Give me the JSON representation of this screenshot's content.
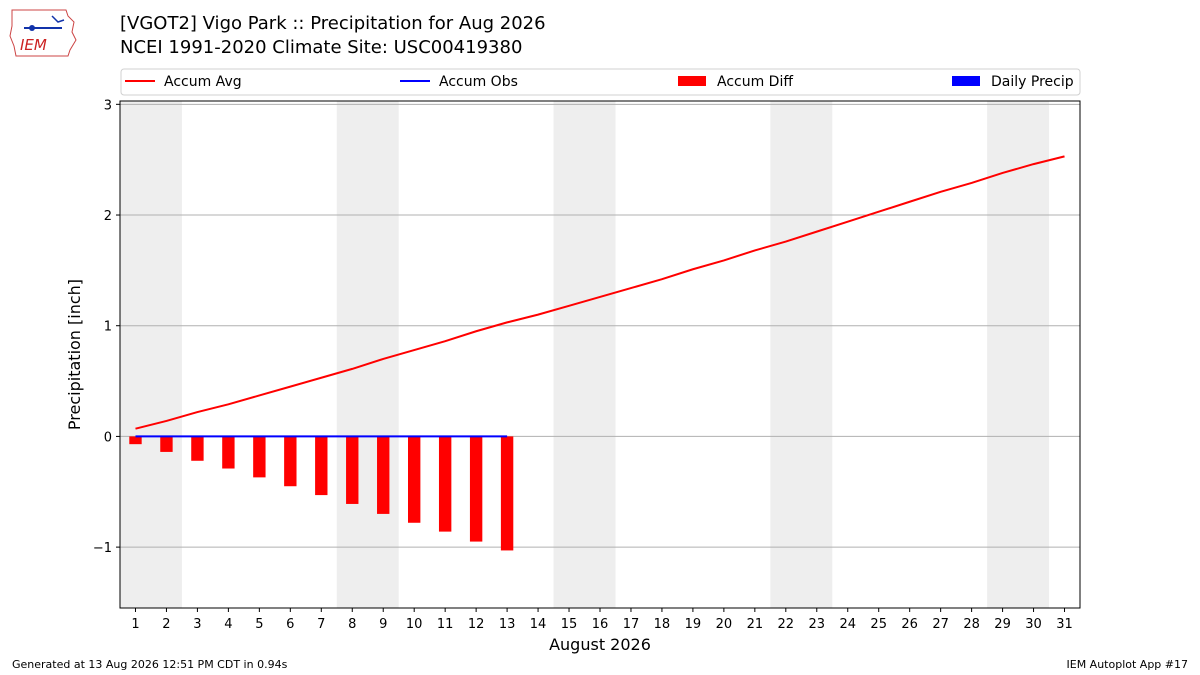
{
  "header": {
    "title_line1": "[VGOT2] Vigo Park :: Precipitation for Aug 2026",
    "title_line2": "NCEI 1991-2020 Climate Site: USC00419380",
    "logo_text": "IEM"
  },
  "footer": {
    "generated": "Generated at 13 Aug 2026 12:51 PM CDT in 0.94s",
    "app": "IEM Autoplot App #17"
  },
  "colors": {
    "accum_avg": "#ff0000",
    "accum_obs": "#0000ff",
    "accum_diff": "#ff0000",
    "daily_precip": "#0000ff",
    "weekend_band": "#eeeeee",
    "grid": "#b0b0b0"
  },
  "chart_data": {
    "type": "line",
    "xlabel": "August 2026",
    "ylabel": "Precipitation [inch]",
    "xlim": [
      0.5,
      31.5
    ],
    "ylim": [
      -1.55,
      3.03
    ],
    "grid": "horizontal",
    "legend_placement": "top",
    "x_ticks": [
      1,
      2,
      3,
      4,
      5,
      6,
      7,
      8,
      9,
      10,
      11,
      12,
      13,
      14,
      15,
      16,
      17,
      18,
      19,
      20,
      21,
      22,
      23,
      24,
      25,
      26,
      27,
      28,
      29,
      30,
      31
    ],
    "y_ticks": [
      {
        "value": -1,
        "label": "−1"
      },
      {
        "value": 0,
        "label": "0"
      },
      {
        "value": 1,
        "label": "1"
      },
      {
        "value": 2,
        "label": "2"
      },
      {
        "value": 3,
        "label": "3"
      }
    ],
    "weekend_bands": [
      [
        0.5,
        2.5
      ],
      [
        7.5,
        9.5
      ],
      [
        14.5,
        16.5
      ],
      [
        21.5,
        23.5
      ],
      [
        28.5,
        30.5
      ]
    ],
    "legend": [
      {
        "label": "Accum Avg",
        "kind": "line",
        "color": "#ff0000"
      },
      {
        "label": "Accum Obs",
        "kind": "line",
        "color": "#0000ff"
      },
      {
        "label": "Accum Diff",
        "kind": "bar",
        "color": "#ff0000"
      },
      {
        "label": "Daily Precip",
        "kind": "bar",
        "color": "#0000ff"
      }
    ],
    "series": [
      {
        "name": "Accum Avg",
        "type": "line",
        "x": [
          1,
          2,
          3,
          4,
          5,
          6,
          7,
          8,
          9,
          10,
          11,
          12,
          13,
          14,
          15,
          16,
          17,
          18,
          19,
          20,
          21,
          22,
          23,
          24,
          25,
          26,
          27,
          28,
          29,
          30,
          31
        ],
        "values": [
          0.07,
          0.14,
          0.22,
          0.29,
          0.37,
          0.45,
          0.53,
          0.61,
          0.7,
          0.78,
          0.86,
          0.95,
          1.03,
          1.1,
          1.18,
          1.26,
          1.34,
          1.42,
          1.51,
          1.59,
          1.68,
          1.76,
          1.85,
          1.94,
          2.03,
          2.12,
          2.21,
          2.29,
          2.38,
          2.46,
          2.53
        ]
      },
      {
        "name": "Accum Obs",
        "type": "line",
        "x": [
          1,
          2,
          3,
          4,
          5,
          6,
          7,
          8,
          9,
          10,
          11,
          12,
          13
        ],
        "values": [
          0,
          0,
          0,
          0,
          0,
          0,
          0,
          0,
          0,
          0,
          0,
          0,
          0
        ]
      },
      {
        "name": "Accum Diff",
        "type": "bar",
        "x": [
          1,
          2,
          3,
          4,
          5,
          6,
          7,
          8,
          9,
          10,
          11,
          12,
          13
        ],
        "values": [
          -0.07,
          -0.14,
          -0.22,
          -0.29,
          -0.37,
          -0.45,
          -0.53,
          -0.61,
          -0.7,
          -0.78,
          -0.86,
          -0.95,
          -1.03
        ]
      },
      {
        "name": "Daily Precip",
        "type": "bar",
        "x": [
          1,
          2,
          3,
          4,
          5,
          6,
          7,
          8,
          9,
          10,
          11,
          12,
          13
        ],
        "values": [
          0,
          0,
          0,
          0,
          0,
          0,
          0,
          0,
          0,
          0,
          0,
          0,
          0
        ]
      }
    ]
  }
}
